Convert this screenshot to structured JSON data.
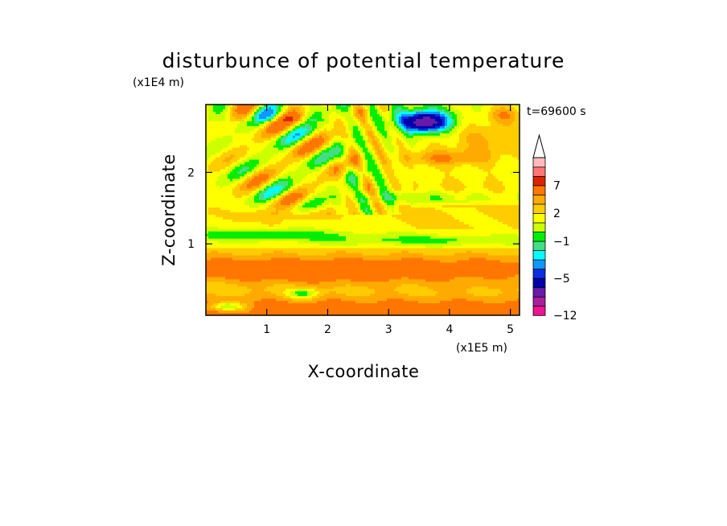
{
  "chart_data": {
    "type": "heatmap",
    "title": "disturbunce of potential temperature",
    "xlabel": "X-coordinate",
    "ylabel": "Z-coordinate",
    "x_unit": "(x1E5 m)",
    "y_unit": "(x1E4 m)",
    "time_label": "t=69600 s",
    "xlim": [
      0,
      5.15
    ],
    "ylim": [
      0,
      2.95
    ],
    "x_ticks": [
      "1",
      "2",
      "3",
      "4",
      "5"
    ],
    "y_ticks": [
      "1",
      "2"
    ],
    "colorbar": {
      "ticks": [
        "7",
        "2",
        "−1",
        "−5",
        "−12"
      ],
      "levels": [
        -12,
        -10,
        -8,
        -6,
        -5,
        -4,
        -3,
        -2,
        -1,
        0,
        1,
        2,
        3,
        5,
        7,
        9,
        11
      ],
      "colors": [
        "#ee1493",
        "#aa1e9e",
        "#6a1aa8",
        "#0000aa",
        "#0a2ee0",
        "#1096ff",
        "#00ffff",
        "#44dd88",
        "#00ee00",
        "#ccff00",
        "#ffff00",
        "#ffcc00",
        "#ffaa00",
        "#ff7700",
        "#dd2200",
        "#ff7777",
        "#ffbbbb",
        "#ffffff"
      ]
    }
  }
}
